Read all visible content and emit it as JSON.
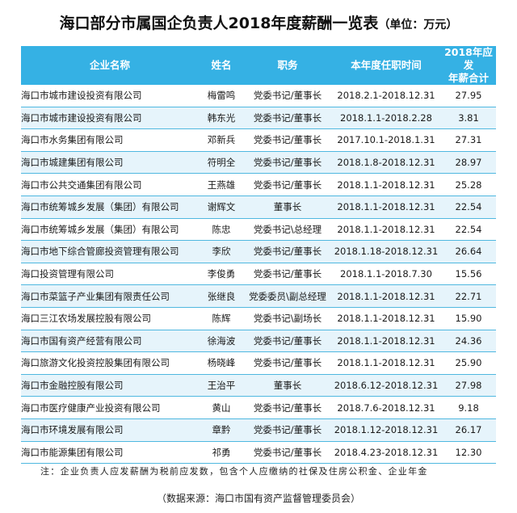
{
  "title": {
    "main": "海口部分市属国企负责人2018年度薪酬一览表",
    "unit": "（单位：万元）"
  },
  "table": {
    "headers": {
      "company": "企业名称",
      "name": "姓名",
      "position": "职务",
      "term": "本年度任职时间",
      "pay_line1": "2018年应发",
      "pay_line2": "年薪合计"
    },
    "rows": [
      {
        "company": "海口市城市建设投资有限公司",
        "name": "梅雷鸣",
        "position": "党委书记/董事长",
        "term": "2018.2.1-2018.12.31",
        "pay": "27.95"
      },
      {
        "company": "海口市城市建设投资有限公司",
        "name": "韩东光",
        "position": "党委书记/董事长",
        "term": "2018.1.1-2018.2.28",
        "pay": "3.81"
      },
      {
        "company": "海口市水务集团有限公司",
        "name": "邓新兵",
        "position": "党委书记/董事长",
        "term": "2017.10.1-2018.1.31",
        "pay": "27.31"
      },
      {
        "company": "海口市城建集团有限公司",
        "name": "符明全",
        "position": "党委书记/董事长",
        "term": "2018.1.8-2018.12.31",
        "pay": "28.97"
      },
      {
        "company": "海口市公共交通集团有限公司",
        "name": "王燕雄",
        "position": "党委书记/董事长",
        "term": "2018.1.1-2018.12.31",
        "pay": "25.28"
      },
      {
        "company": "海口市统筹城乡发展（集团）有限公司",
        "name": "谢辉文",
        "position": "董事长",
        "term": "2018.1.1-2018.12.31",
        "pay": "22.54"
      },
      {
        "company": "海口市统筹城乡发展（集团）有限公司",
        "name": "陈忠",
        "position": "党委书记\\总经理",
        "term": "2018.1.1-2018.12.31",
        "pay": "22.54"
      },
      {
        "company": "海口市地下综合管廊投资管理有限公司",
        "name": "李欣",
        "position": "党委书记/董事长",
        "term": "2018.1.18-2018.12.31",
        "pay": "26.64"
      },
      {
        "company": "海口投资管理有限公司",
        "name": "李俊勇",
        "position": "党委书记/董事长",
        "term": "2018.1.1-2018.7.30",
        "pay": "15.56"
      },
      {
        "company": "海口市菜篮子产业集团有限责任公司",
        "name": "张继良",
        "position": "党委委员\\副总经理",
        "term": "2018.1.1-2018.12.31",
        "pay": "22.71"
      },
      {
        "company": "海口三江农场发展控股有限公司",
        "name": "陈辉",
        "position": "党委书记\\副场长",
        "term": "2018.1.1-2018.12.31",
        "pay": "15.90"
      },
      {
        "company": "海口市国有资产经营有限公司",
        "name": "徐海波",
        "position": "党委书记/董事长",
        "term": "2018.1.1-2018.12.31",
        "pay": "24.36"
      },
      {
        "company": "海口旅游文化投资控股集团有限公司",
        "name": "杨晓峰",
        "position": "党委书记/董事长",
        "term": "2018.1.1-2018.12.31",
        "pay": "25.90"
      },
      {
        "company": "海口市金融控股有限公司",
        "name": "王治平",
        "position": "董事长",
        "term": "2018.6.12-2018.12.31",
        "pay": "27.98"
      },
      {
        "company": "海口市医疗健康产业投资有限公司",
        "name": "黄山",
        "position": "党委书记/董事长",
        "term": "2018.7.6-2018.12.31",
        "pay": "9.18"
      },
      {
        "company": "海口市环境发展有限公司",
        "name": "章黔",
        "position": "党委书记/董事长",
        "term": "2018.1.12-2018.12.31",
        "pay": "26.17"
      },
      {
        "company": "海口市能源集团有限公司",
        "name": "祁勇",
        "position": "党委书记/董事长",
        "term": "2018.4.23-2018.12.31",
        "pay": "12.30"
      }
    ]
  },
  "note": "注：企业负责人应发薪酬为税前应发数，包含个人应缴纳的社保及住房公积金、企业年金",
  "source": "（数据来源：海口市国有资产监督管理委员会）",
  "colors": {
    "header_bg": "#35b1e4",
    "row_stripe": "#e6f4fb",
    "row_border": "#4fb8e0"
  }
}
